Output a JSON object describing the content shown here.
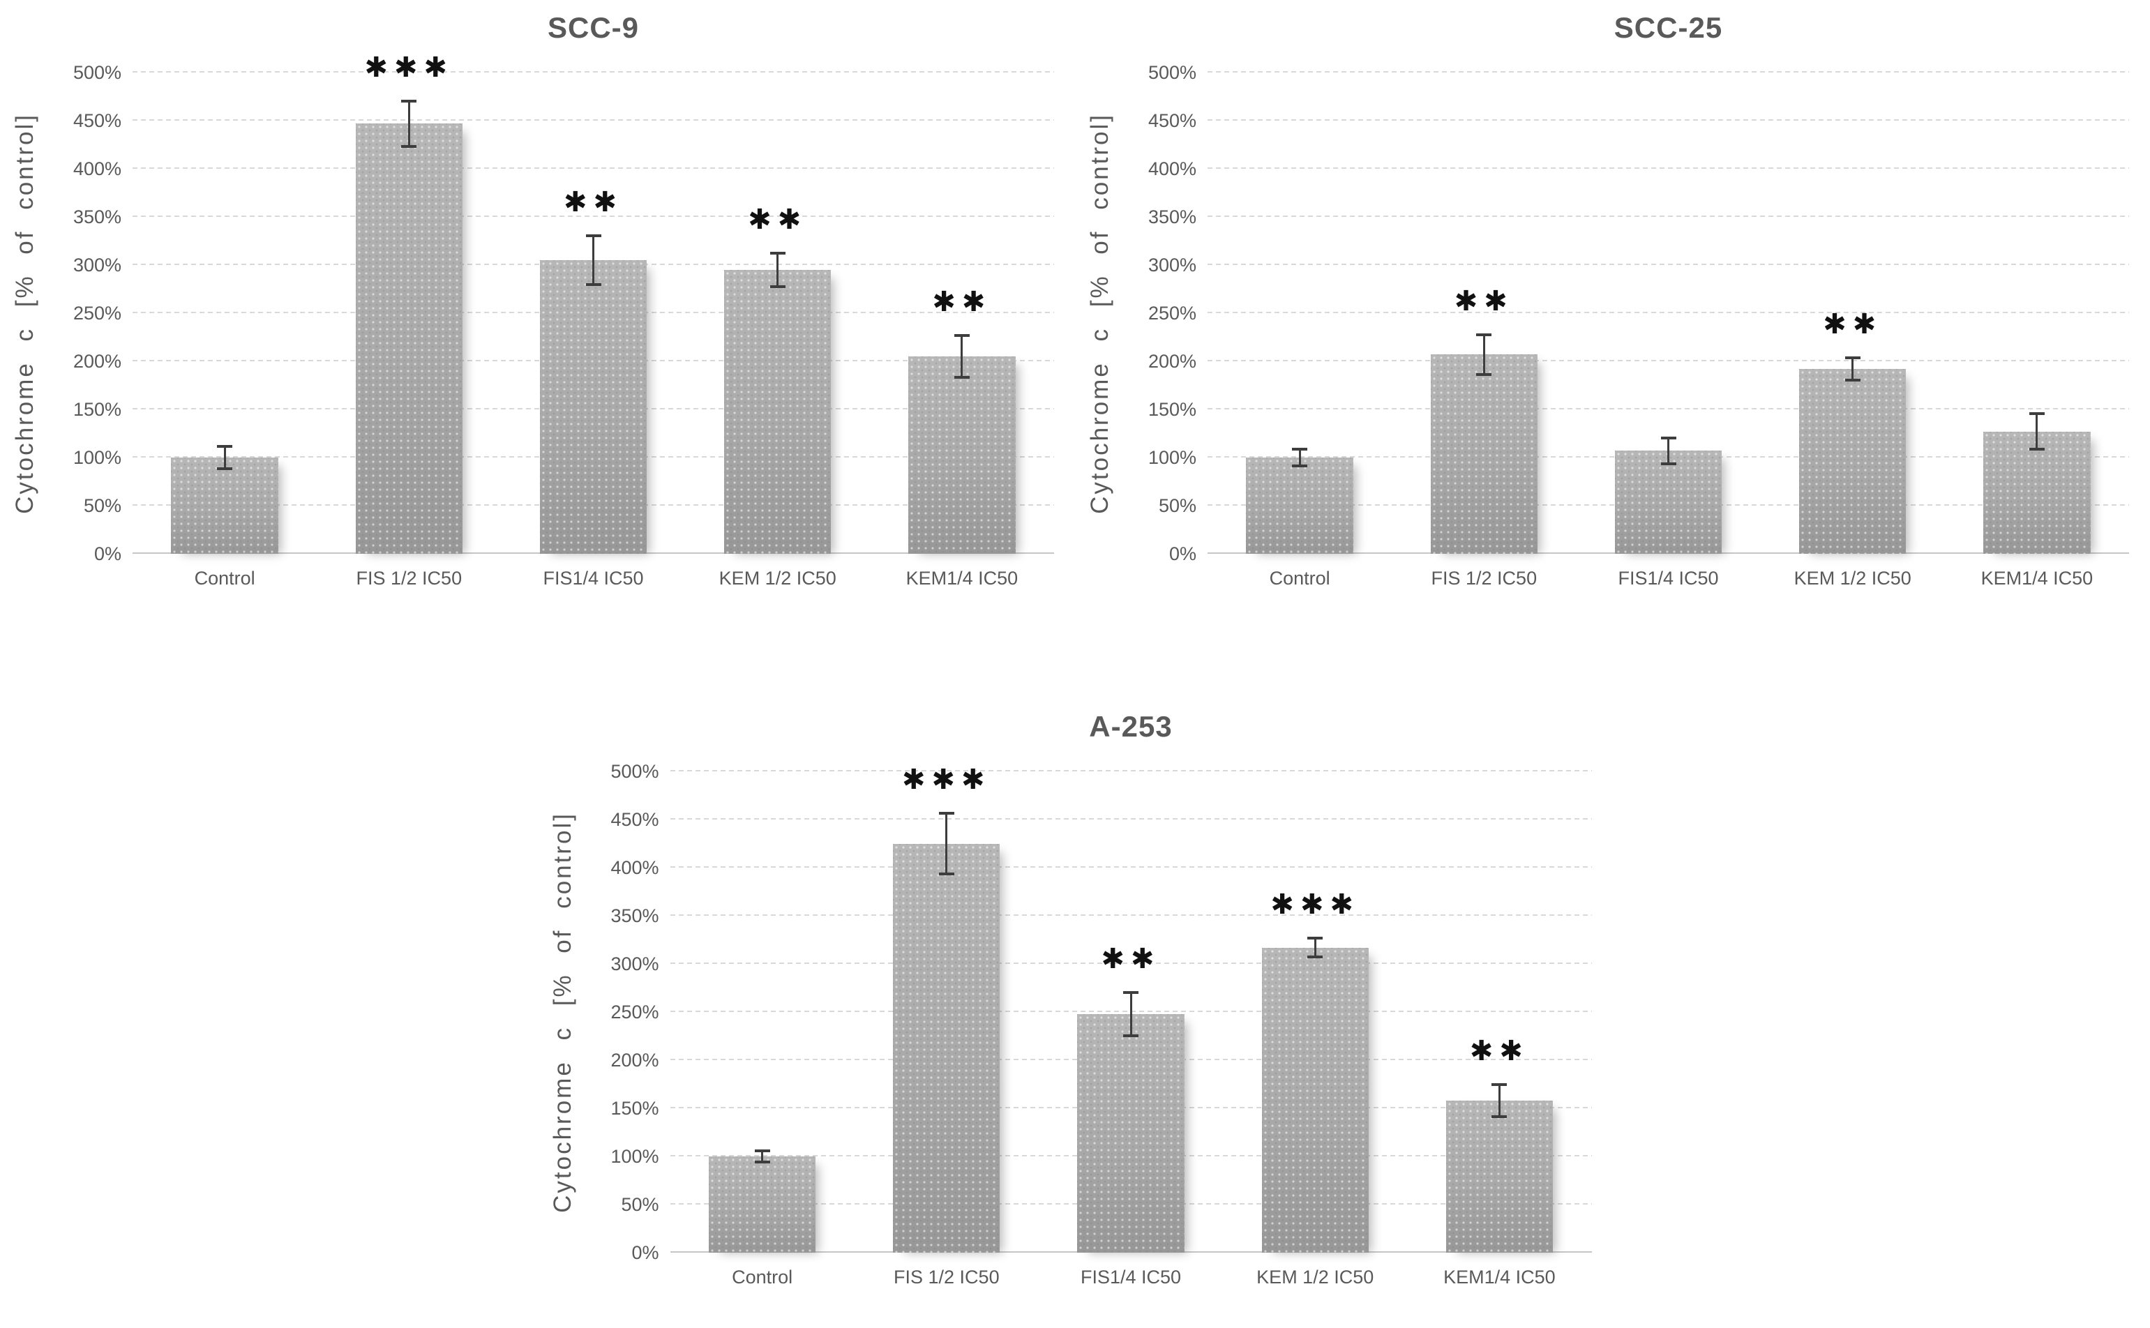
{
  "figure": {
    "description": "Panel of three bar charts of cytochrome c release in three cell lines",
    "panel_titles": [
      "SCC-9",
      "SCC-25",
      "A-253"
    ]
  },
  "colors": {
    "background": "#ffffff",
    "title_text": "#595959",
    "axis_text": "#595959",
    "gridline": "#d8d8d8",
    "baseline": "#c6c6c6",
    "bar_fill_light": "#b7b7b7",
    "bar_fill_dark": "#979797",
    "error_bar": "#3d3d3d",
    "significance_star": "#111111"
  },
  "chart_data": [
    {
      "type": "bar",
      "title": "SCC-9",
      "ylabel": "Cytochrome  c [% of control]",
      "xlabel": "",
      "ylim": [
        0,
        500
      ],
      "ytick_labels": [
        "0%",
        "50%",
        "100%",
        "150%",
        "200%",
        "250%",
        "300%",
        "350%",
        "400%",
        "450%",
        "500%"
      ],
      "grid": "horizontal-dashed",
      "legend": "none",
      "categories": [
        "Control",
        "FIS 1/2 IC50",
        "FIS1/4 IC50",
        "KEM 1/2 IC50",
        "KEM1/4 IC50"
      ],
      "values_percent": [
        100,
        447,
        305,
        295,
        205
      ],
      "error_bars_percent": [
        13,
        25,
        27,
        19,
        23
      ],
      "significance": [
        "",
        "***",
        "**",
        "**",
        "**"
      ]
    },
    {
      "type": "bar",
      "title": "SCC-25",
      "ylabel": "Cytochrome  c [% of control]",
      "xlabel": "",
      "ylim": [
        0,
        500
      ],
      "ytick_labels": [
        "0%",
        "50%",
        "100%",
        "150%",
        "200%",
        "250%",
        "300%",
        "350%",
        "400%",
        "450%",
        "500%"
      ],
      "grid": "horizontal-dashed",
      "legend": "none",
      "categories": [
        "Control",
        "FIS 1/2 IC50",
        "FIS1/4 IC50",
        "KEM 1/2 IC50",
        "KEM1/4 IC50"
      ],
      "values_percent": [
        100,
        207,
        107,
        192,
        127
      ],
      "error_bars_percent": [
        10,
        22,
        15,
        13,
        20
      ],
      "significance": [
        "",
        "**",
        "",
        "**",
        ""
      ]
    },
    {
      "type": "bar",
      "title": "A-253",
      "ylabel": "Cytochrome  c [% of control]",
      "xlabel": "",
      "ylim": [
        0,
        500
      ],
      "ytick_labels": [
        "0%",
        "50%",
        "100%",
        "150%",
        "200%",
        "250%",
        "300%",
        "350%",
        "400%",
        "450%",
        "500%"
      ],
      "grid": "horizontal-dashed",
      "legend": "none",
      "categories": [
        "Control",
        "FIS 1/2 IC50",
        "FIS1/4 IC50",
        "KEM 1/2 IC50",
        "KEM1/4 IC50"
      ],
      "values_percent": [
        100,
        425,
        248,
        317,
        158
      ],
      "error_bars_percent": [
        7,
        33,
        24,
        11,
        18
      ],
      "significance": [
        "",
        "***",
        "**",
        "***",
        "**"
      ]
    }
  ]
}
